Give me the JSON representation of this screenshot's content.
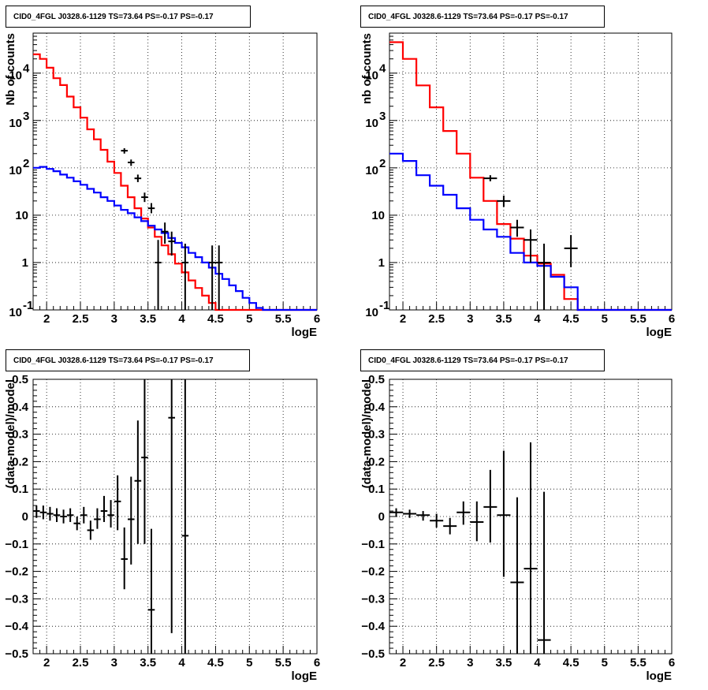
{
  "chart_data": [
    {
      "type": "line",
      "title": "CID0_4FGL J0328.6-1129 TS=73.64 PS=-0.17 PS=-0.17",
      "xlabel": "logE",
      "ylabel": "Nb of counts",
      "xlim": [
        1.8,
        6
      ],
      "ylim": [
        0.1,
        70000
      ],
      "yscale": "log",
      "grid": true,
      "xticks": [
        "2",
        "2.5",
        "3",
        "3.5",
        "4",
        "4.5",
        "5",
        "5.5",
        "6"
      ],
      "yticks": [
        {
          "v": 0.1,
          "label": "10",
          "sup": "-1"
        },
        {
          "v": 1,
          "label": "1",
          "sup": ""
        },
        {
          "v": 10,
          "label": "10",
          "sup": ""
        },
        {
          "v": 100,
          "label": "10",
          "sup": "2"
        },
        {
          "v": 1000,
          "label": "10",
          "sup": "3"
        },
        {
          "v": 10000,
          "label": "10",
          "sup": "4"
        }
      ],
      "bin_start": 1.8,
      "bin_width": 0.1,
      "series": [
        {
          "color": "#ff0000",
          "values": [
            25000,
            20000,
            13000,
            7800,
            5600,
            3200,
            1900,
            1150,
            650,
            400,
            240,
            135,
            78,
            42,
            24,
            14,
            8.5,
            5.5,
            3.5,
            2.3,
            1.5,
            0.95,
            0.62,
            0.42,
            0.29,
            0.2,
            0.14,
            0.1,
            0.1,
            0.1,
            0.1,
            0.1,
            0.1,
            0.1,
            0.1,
            0.1,
            0.1,
            0.1,
            0.1,
            0.1,
            0.1,
            0.1
          ]
        },
        {
          "color": "#0000ff",
          "values": [
            100,
            105,
            95,
            85,
            72,
            62,
            52,
            44,
            36,
            30,
            24,
            20,
            16,
            13,
            11,
            9,
            7.5,
            6,
            5,
            4.2,
            3.3,
            2.6,
            2.1,
            1.6,
            1.3,
            1.0,
            0.78,
            0.58,
            0.45,
            0.33,
            0.25,
            0.18,
            0.14,
            0.11,
            0.1,
            0.1,
            0.1,
            0.1,
            0.1,
            0.1,
            0.1,
            0.1
          ]
        }
      ],
      "points": [
        {
          "x": 3.15,
          "y": 230,
          "lo": 200,
          "hi": 260
        },
        {
          "x": 3.25,
          "y": 130,
          "lo": 110,
          "hi": 150
        },
        {
          "x": 3.35,
          "y": 60,
          "lo": 50,
          "hi": 72
        },
        {
          "x": 3.45,
          "y": 24,
          "lo": 19,
          "hi": 30
        },
        {
          "x": 3.55,
          "y": 14,
          "lo": 11,
          "hi": 18
        },
        {
          "x": 3.65,
          "y": 1,
          "lo": 0.1,
          "hi": 3
        },
        {
          "x": 3.75,
          "y": 4.5,
          "lo": 2.5,
          "hi": 7
        },
        {
          "x": 3.85,
          "y": 2.8,
          "lo": 1.4,
          "hi": 4.5
        },
        {
          "x": 4.05,
          "y": 1,
          "lo": 0.1,
          "hi": 2.5
        },
        {
          "x": 4.45,
          "y": 1,
          "lo": 0.1,
          "hi": 2.3
        },
        {
          "x": 4.55,
          "y": 1,
          "lo": 0.1,
          "hi": 2.3
        }
      ]
    },
    {
      "type": "line",
      "title": "CID0_4FGL J0328.6-1129 TS=73.64 PS=-0.17 PS=-0.17",
      "xlabel": "logE",
      "ylabel": "nb of counts",
      "xlim": [
        1.8,
        6
      ],
      "ylim": [
        0.1,
        70000
      ],
      "yscale": "log",
      "grid": true,
      "xticks": [
        "2",
        "2.5",
        "3",
        "3.5",
        "4",
        "4.5",
        "5",
        "5.5",
        "6"
      ],
      "yticks": [
        {
          "v": 0.1,
          "label": "10",
          "sup": "-1"
        },
        {
          "v": 1,
          "label": "1",
          "sup": ""
        },
        {
          "v": 10,
          "label": "10",
          "sup": ""
        },
        {
          "v": 100,
          "label": "10",
          "sup": "2"
        },
        {
          "v": 1000,
          "label": "10",
          "sup": "3"
        },
        {
          "v": 10000,
          "label": "10",
          "sup": "4"
        }
      ],
      "bin_start": 1.8,
      "bin_width": 0.2,
      "series": [
        {
          "color": "#ff0000",
          "values": [
            45000,
            20000,
            5500,
            1900,
            600,
            200,
            62,
            20,
            6.5,
            3.2,
            1.4,
            0.95,
            0.55,
            0.17,
            0.1,
            0.1,
            0.1,
            0.1,
            0.1,
            0.1,
            0.1
          ]
        },
        {
          "color": "#0000ff",
          "values": [
            200,
            140,
            70,
            42,
            27,
            14,
            8,
            5,
            3.5,
            1.6,
            1.0,
            0.85,
            0.5,
            0.3,
            0.1,
            0.1,
            0.1,
            0.1,
            0.1,
            0.1,
            0.1
          ]
        }
      ],
      "points": [
        {
          "x": 3.3,
          "y": 60,
          "lo": 52,
          "hi": 70
        },
        {
          "x": 3.5,
          "y": 20,
          "lo": 15,
          "hi": 26
        },
        {
          "x": 3.7,
          "y": 5.5,
          "lo": 3.5,
          "hi": 8
        },
        {
          "x": 3.9,
          "y": 3,
          "lo": 1,
          "hi": 5
        },
        {
          "x": 4.1,
          "y": 1,
          "lo": 0.1,
          "hi": 2.5
        },
        {
          "x": 4.5,
          "y": 2,
          "lo": 0.8,
          "hi": 3.8
        }
      ]
    },
    {
      "type": "scatter",
      "title": "CID0_4FGL J0328.6-1129 TS=73.64 PS=-0.17 PS=-0.17",
      "xlabel": "logE",
      "ylabel": "(data-model)/model",
      "xlim": [
        1.8,
        6
      ],
      "ylim": [
        -0.5,
        0.5
      ],
      "yscale": "linear",
      "grid": true,
      "xticks": [
        "2",
        "2.5",
        "3",
        "3.5",
        "4",
        "4.5",
        "5",
        "5.5",
        "6"
      ],
      "yticks": [
        {
          "v": -0.5,
          "label": "−0.5",
          "sup": ""
        },
        {
          "v": -0.4,
          "label": "−0.4",
          "sup": ""
        },
        {
          "v": -0.3,
          "label": "−0.3",
          "sup": ""
        },
        {
          "v": -0.2,
          "label": "−0.2",
          "sup": ""
        },
        {
          "v": -0.1,
          "label": "−0.1",
          "sup": ""
        },
        {
          "v": 0,
          "label": "0",
          "sup": ""
        },
        {
          "v": 0.1,
          "label": "0.1",
          "sup": ""
        },
        {
          "v": 0.2,
          "label": "0.2",
          "sup": ""
        },
        {
          "v": 0.3,
          "label": "0.3",
          "sup": ""
        },
        {
          "v": 0.4,
          "label": "0.4",
          "sup": ""
        },
        {
          "v": 0.5,
          "label": "0.5",
          "sup": ""
        }
      ],
      "bin_width": 0.1,
      "points": [
        {
          "x": 1.85,
          "y": 0.02,
          "lo": -0.005,
          "hi": 0.04
        },
        {
          "x": 1.95,
          "y": 0.015,
          "lo": -0.01,
          "hi": 0.04
        },
        {
          "x": 2.05,
          "y": 0.01,
          "lo": -0.015,
          "hi": 0.035
        },
        {
          "x": 2.15,
          "y": 0.005,
          "lo": -0.02,
          "hi": 0.03
        },
        {
          "x": 2.25,
          "y": 0.0,
          "lo": -0.025,
          "hi": 0.025
        },
        {
          "x": 2.35,
          "y": 0.005,
          "lo": -0.02,
          "hi": 0.03
        },
        {
          "x": 2.45,
          "y": -0.025,
          "lo": -0.05,
          "hi": 0.0
        },
        {
          "x": 2.55,
          "y": 0.005,
          "lo": -0.025,
          "hi": 0.035
        },
        {
          "x": 2.65,
          "y": -0.05,
          "lo": -0.085,
          "hi": -0.015
        },
        {
          "x": 2.75,
          "y": -0.01,
          "lo": -0.045,
          "hi": 0.03
        },
        {
          "x": 2.85,
          "y": 0.02,
          "lo": -0.02,
          "hi": 0.075
        },
        {
          "x": 2.95,
          "y": 0.005,
          "lo": -0.04,
          "hi": 0.06
        },
        {
          "x": 3.05,
          "y": 0.055,
          "lo": -0.05,
          "hi": 0.15
        },
        {
          "x": 3.15,
          "y": -0.155,
          "lo": -0.265,
          "hi": -0.04
        },
        {
          "x": 3.25,
          "y": -0.01,
          "lo": -0.175,
          "hi": 0.145
        },
        {
          "x": 3.35,
          "y": 0.13,
          "lo": -0.1,
          "hi": 0.35
        },
        {
          "x": 3.45,
          "y": 0.215,
          "lo": -0.1,
          "hi": 0.5
        },
        {
          "x": 3.55,
          "y": -0.34,
          "lo": -0.5,
          "hi": -0.045
        },
        {
          "x": 3.85,
          "y": 0.36,
          "lo": -0.425,
          "hi": 0.5
        },
        {
          "x": 4.05,
          "y": -0.07,
          "lo": -0.5,
          "hi": 0.5
        }
      ]
    },
    {
      "type": "scatter",
      "title": "CID0_4FGL J0328.6-1129 TS=73.64 PS=-0.17 PS=-0.17",
      "xlabel": "logE",
      "ylabel": "(data-model)/model",
      "xlim": [
        1.8,
        6
      ],
      "ylim": [
        -0.5,
        0.5
      ],
      "yscale": "linear",
      "grid": true,
      "xticks": [
        "2",
        "2.5",
        "3",
        "3.5",
        "4",
        "4.5",
        "5",
        "5.5",
        "6"
      ],
      "yticks": [
        {
          "v": -0.5,
          "label": "−0.5",
          "sup": ""
        },
        {
          "v": -0.4,
          "label": "−0.4",
          "sup": ""
        },
        {
          "v": -0.3,
          "label": "−0.3",
          "sup": ""
        },
        {
          "v": -0.2,
          "label": "−0.2",
          "sup": ""
        },
        {
          "v": -0.1,
          "label": "−0.1",
          "sup": ""
        },
        {
          "v": 0,
          "label": "0",
          "sup": ""
        },
        {
          "v": 0.1,
          "label": "0.1",
          "sup": ""
        },
        {
          "v": 0.2,
          "label": "0.2",
          "sup": ""
        },
        {
          "v": 0.3,
          "label": "0.3",
          "sup": ""
        },
        {
          "v": 0.4,
          "label": "0.4",
          "sup": ""
        },
        {
          "v": 0.5,
          "label": "0.5",
          "sup": ""
        }
      ],
      "bin_width": 0.2,
      "points": [
        {
          "x": 1.9,
          "y": 0.015,
          "lo": 0.0,
          "hi": 0.03
        },
        {
          "x": 2.1,
          "y": 0.01,
          "lo": -0.005,
          "hi": 0.025
        },
        {
          "x": 2.3,
          "y": 0.005,
          "lo": -0.015,
          "hi": 0.02
        },
        {
          "x": 2.5,
          "y": -0.015,
          "lo": -0.04,
          "hi": 0.01
        },
        {
          "x": 2.7,
          "y": -0.035,
          "lo": -0.065,
          "hi": -0.005
        },
        {
          "x": 2.9,
          "y": 0.015,
          "lo": -0.03,
          "hi": 0.055
        },
        {
          "x": 3.1,
          "y": -0.02,
          "lo": -0.09,
          "hi": 0.055
        },
        {
          "x": 3.3,
          "y": 0.035,
          "lo": -0.095,
          "hi": 0.17
        },
        {
          "x": 3.5,
          "y": 0.005,
          "lo": -0.22,
          "hi": 0.24
        },
        {
          "x": 3.7,
          "y": -0.24,
          "lo": -0.5,
          "hi": 0.07
        },
        {
          "x": 3.9,
          "y": -0.19,
          "lo": -0.5,
          "hi": 0.27
        },
        {
          "x": 4.1,
          "y": -0.45,
          "lo": -0.5,
          "hi": 0.09
        }
      ]
    }
  ]
}
